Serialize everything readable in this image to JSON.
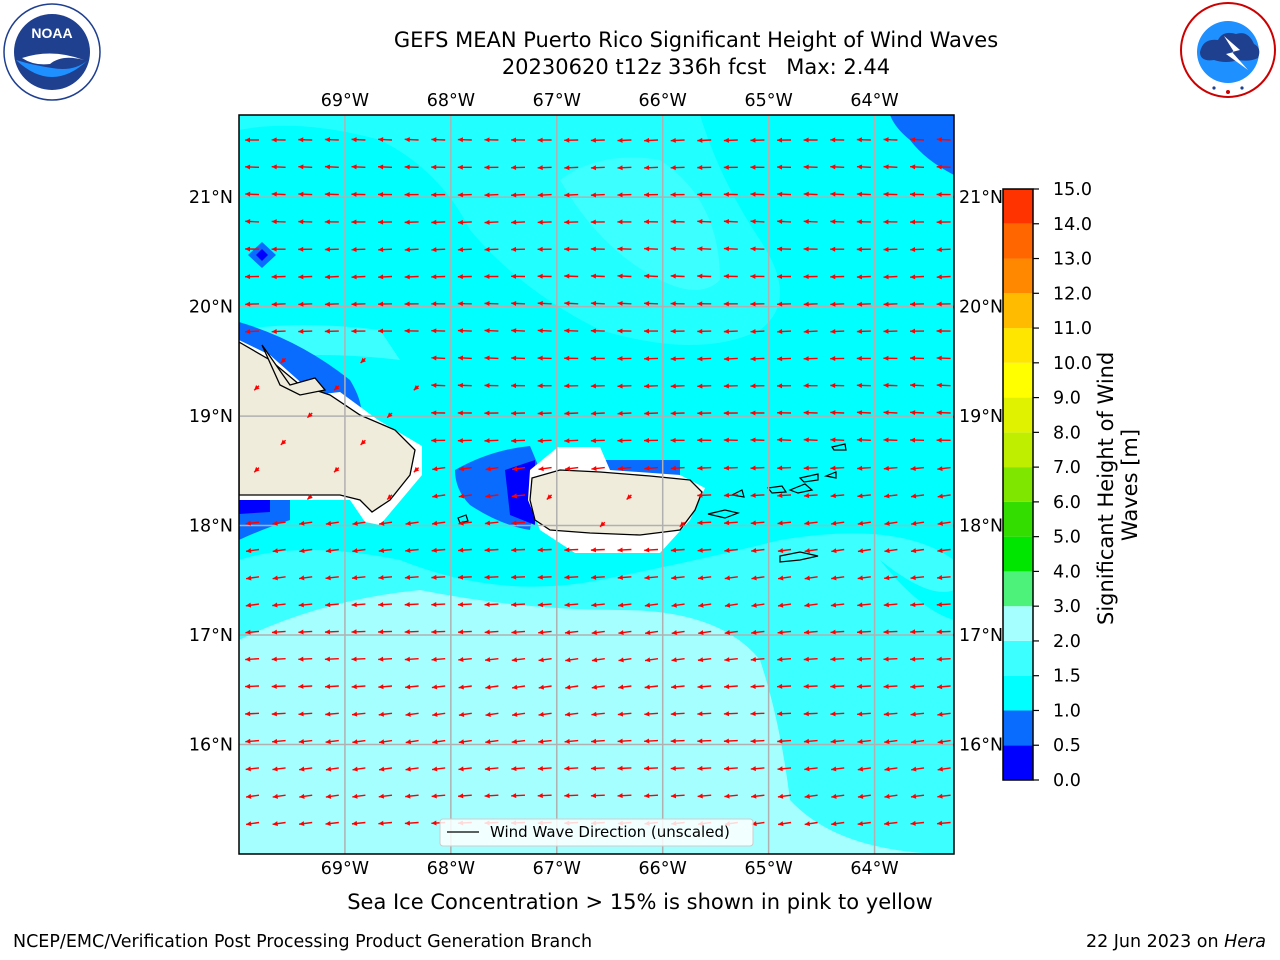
{
  "header": {
    "title": "GEFS MEAN Puerto Rico Significant Height of Wind Waves",
    "subtitle": "20230620 t12z 336h fcst   Max: 2.44"
  },
  "logos": {
    "left": {
      "icon": "noaa-logo",
      "text": "NOAA",
      "ring_text": "NATIONAL OCEANIC AND ATMOSPHERIC ADMINISTRATION · U.S. DEPARTMENT OF COMMERCE"
    },
    "right": {
      "icon": "nws-logo",
      "ring_text": "NATIONAL WEATHER SERVICE"
    }
  },
  "map": {
    "lon_ticks": [
      "69°W",
      "68°W",
      "67°W",
      "66°W",
      "65°W",
      "64°W"
    ],
    "lat_ticks": [
      "21°N",
      "20°N",
      "19°N",
      "18°N",
      "17°N",
      "16°N"
    ],
    "lon_values": [
      -69,
      -68,
      -67,
      -66,
      -65,
      -64
    ],
    "lat_values": [
      21,
      20,
      19,
      18,
      17,
      16
    ],
    "extent": {
      "lon": [
        -70,
        -63.25
      ],
      "lat": [
        15.0,
        21.75
      ]
    },
    "legend_label": "Wind Wave Direction (unscaled)",
    "arrow_color": "#ff0000",
    "land_color": "#efecdc",
    "gridline_color": "#b0b0b0"
  },
  "colorbar": {
    "label": "Significant Height of Wind Waves [m]",
    "tick_labels": [
      "0.0",
      "0.5",
      "1.0",
      "1.5",
      "2.0",
      "3.0",
      "4.0",
      "5.0",
      "6.0",
      "7.0",
      "8.0",
      "9.0",
      "10.0",
      "11.0",
      "12.0",
      "13.0",
      "14.0",
      "15.0"
    ],
    "colors": [
      "#0000ff",
      "#0a6cff",
      "#00ffff",
      "#3cffff",
      "#a6ffff",
      "#4cf27a",
      "#00e600",
      "#33dd00",
      "#7fe600",
      "#bfee00",
      "#e0f200",
      "#ffff00",
      "#ffe600",
      "#ffbb00",
      "#ff8800",
      "#ff6600",
      "#ff3300",
      "#ff0000"
    ]
  },
  "note": "Sea Ice Concentration > 15% is shown in pink to yellow",
  "footer": {
    "left": "NCEP/EMC/Verification Post Processing Product Generation Branch",
    "right_prefix": "22 Jun 2023 on ",
    "right_machine": "Hera"
  }
}
